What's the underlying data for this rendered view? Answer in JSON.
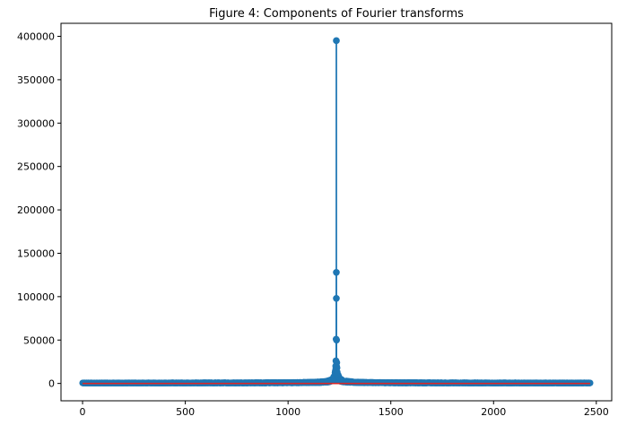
{
  "chart_data": {
    "type": "stem",
    "title": "Figure 4: Components of Fourier transforms",
    "xlabel": "",
    "ylabel": "",
    "xlim": [
      -105,
      2575
    ],
    "ylim": [
      -20000,
      415000
    ],
    "xticks": [
      0,
      500,
      1000,
      1500,
      2000,
      2500
    ],
    "yticks": [
      0,
      50000,
      100000,
      150000,
      200000,
      250000,
      300000,
      350000,
      400000
    ],
    "grid": false,
    "legend": "none",
    "n_points": 2471,
    "peak_index": 1235,
    "peak_value": 395000,
    "near_peak_points": [
      {
        "x": 1235,
        "y": 395000
      },
      {
        "x": 1235,
        "y": 128000
      },
      {
        "x": 1235,
        "y": 98000
      },
      {
        "x": 1234,
        "y": 51000
      },
      {
        "x": 1236,
        "y": 50000
      },
      {
        "x": 1233,
        "y": 26000
      },
      {
        "x": 1237,
        "y": 24000
      },
      {
        "x": 1232,
        "y": 20000
      },
      {
        "x": 1238,
        "y": 18000
      },
      {
        "x": 1231,
        "y": 15000
      },
      {
        "x": 1239,
        "y": 13000
      }
    ],
    "baseline_value": 0,
    "colors": {
      "stem": "#1f77b4",
      "marker": "#1f77b4",
      "baseline": "#d62728"
    }
  }
}
